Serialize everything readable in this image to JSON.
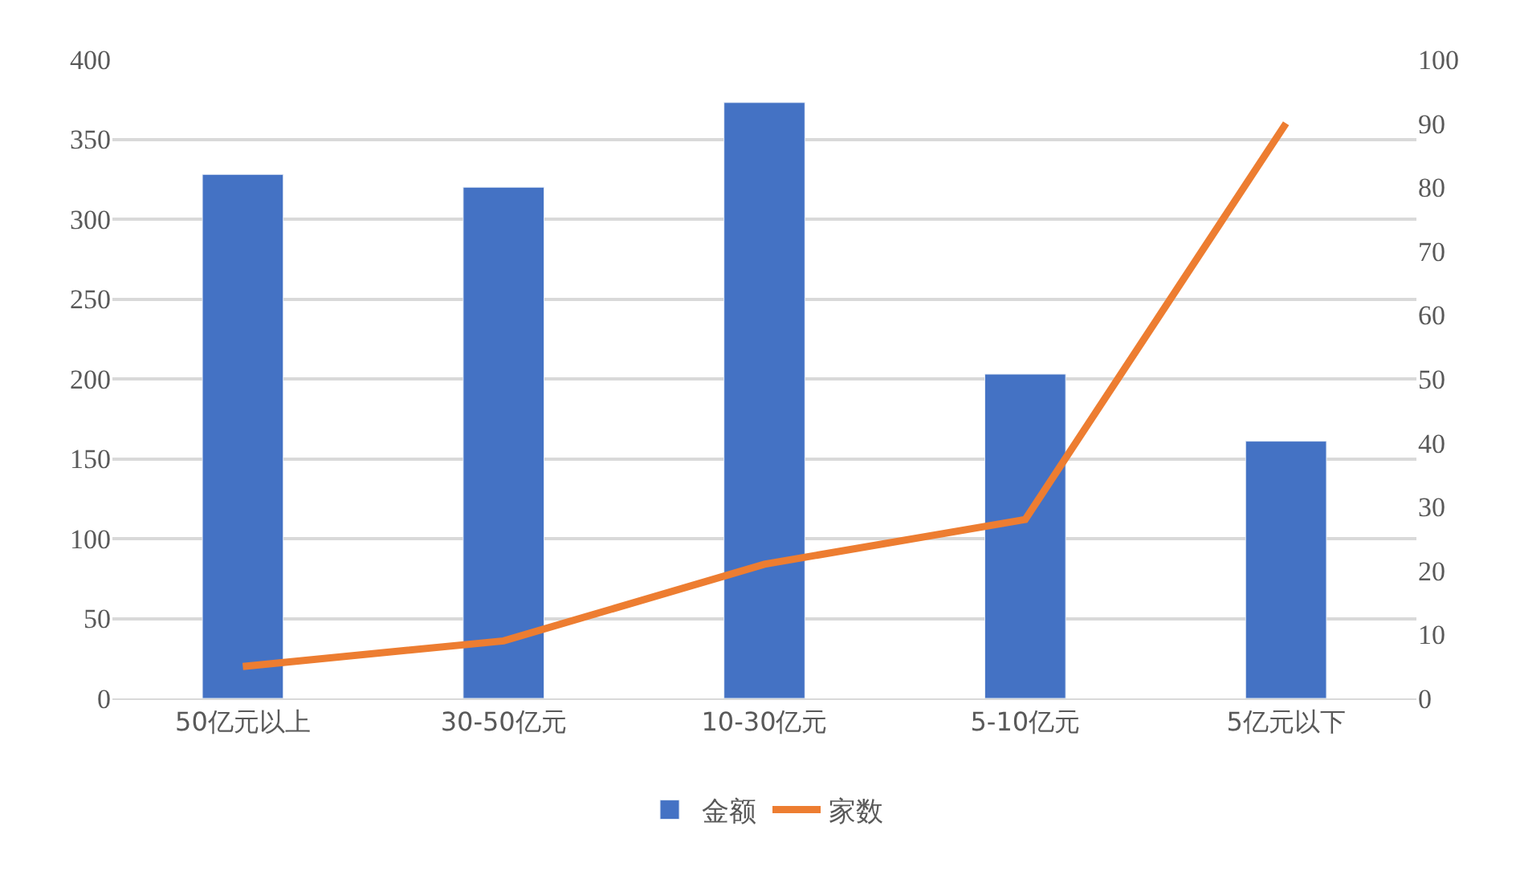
{
  "chart_data": {
    "type": "bar",
    "categories": [
      "50亿元以上",
      "30-50亿元",
      "10-30亿元",
      "5-10亿元",
      "5亿元以下"
    ],
    "series": [
      {
        "name": "金额",
        "color": "#4472c4",
        "values": [
          328,
          320,
          373,
          203,
          161
        ]
      },
      {
        "name": "家数",
        "color": "#ed7d31",
        "type": "line",
        "axis": "y2",
        "values": [
          5,
          9,
          21,
          28,
          90
        ]
      }
    ],
    "ylim": [
      0,
      400
    ],
    "yticks": [
      0,
      50,
      100,
      150,
      200,
      250,
      300,
      350,
      400
    ],
    "y2lim": [
      0,
      100
    ],
    "y2ticks": [
      0,
      10,
      20,
      30,
      40,
      50,
      60,
      70,
      80,
      90,
      100
    ],
    "grid": "y",
    "legend": "bottom",
    "marker": "none",
    "line_style": "solid"
  }
}
